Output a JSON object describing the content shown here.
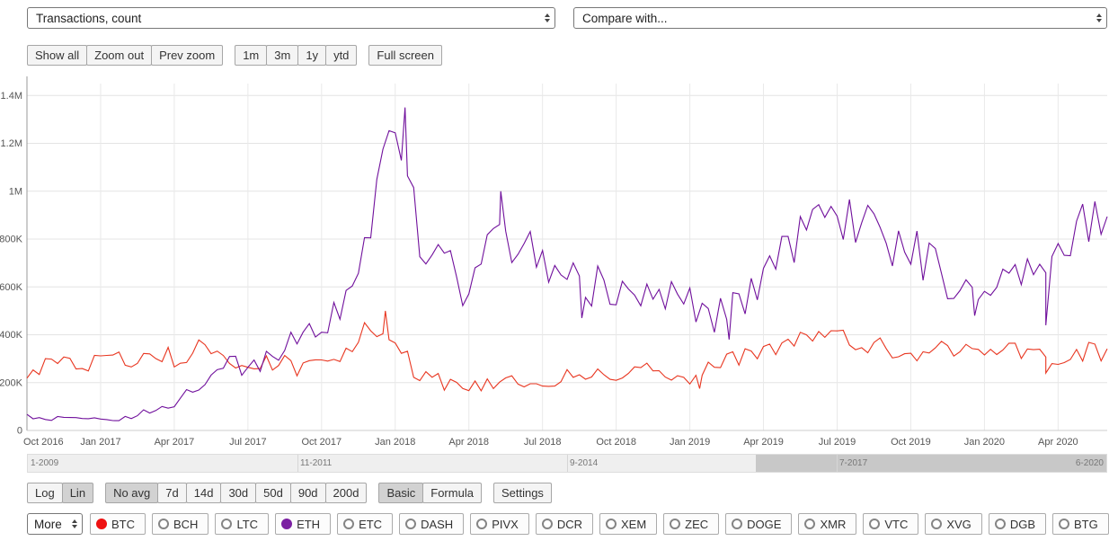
{
  "header": {
    "metric_select": {
      "value": "Transactions, count"
    },
    "compare_select": {
      "value": "Compare with..."
    }
  },
  "toolbar": {
    "zoom_buttons": [
      {
        "label": "Show all",
        "active": false
      },
      {
        "label": "Zoom out",
        "active": false
      },
      {
        "label": "Prev zoom",
        "active": false
      }
    ],
    "range_buttons": [
      {
        "label": "1m",
        "active": false
      },
      {
        "label": "3m",
        "active": false
      },
      {
        "label": "1y",
        "active": false
      },
      {
        "label": "ytd",
        "active": false
      }
    ],
    "fullscreen_buttons": [
      {
        "label": "Full screen",
        "active": false
      }
    ]
  },
  "chart_data": {
    "type": "line",
    "title": "Transactions, count",
    "grid": true,
    "x_axis": {
      "start": "Oct 2016",
      "end": "Jun 2020",
      "total_months": 44,
      "tick_month_indices": [
        0,
        3,
        6,
        9,
        12,
        15,
        18,
        21,
        24,
        27,
        30,
        33,
        36,
        39,
        42
      ],
      "tick_labels": [
        "Oct 2016",
        "Jan 2017",
        "Apr 2017",
        "Jul 2017",
        "Oct 2017",
        "Jan 2018",
        "Apr 2018",
        "Jul 2018",
        "Oct 2018",
        "Jan 2019",
        "Apr 2019",
        "Jul 2019",
        "Oct 2019",
        "Jan 2020",
        "Apr 2020"
      ]
    },
    "y_axis": {
      "max": 1450000,
      "ticks": [
        {
          "value": 0,
          "label": "0"
        },
        {
          "value": 200000,
          "label": "200K"
        },
        {
          "value": 400000,
          "label": "400K"
        },
        {
          "value": 600000,
          "label": "600K"
        },
        {
          "value": 800000,
          "label": "800K"
        },
        {
          "value": 1000000,
          "label": "1M"
        },
        {
          "value": 1200000,
          "label": "1.2M"
        },
        {
          "value": 1400000,
          "label": "1.4M"
        }
      ]
    },
    "series": [
      {
        "name": "BTC",
        "color": "#e8351f",
        "interval": "monthly",
        "monthly_values": [
          245000,
          265000,
          280000,
          285000,
          295000,
          320000,
          305000,
          335000,
          325000,
          270000,
          285000,
          270000,
          295000,
          335000,
          440000,
          370000,
          225000,
          200000,
          185000,
          205000,
          195000,
          205000,
          220000,
          225000,
          235000,
          250000,
          245000,
          230000,
          265000,
          295000,
          335000,
          375000,
          390000,
          405000,
          355000,
          340000,
          330000,
          330000,
          320000,
          310000,
          330000,
          315000,
          290000,
          330000,
          305000
        ],
        "spikes": [
          [
            14.6,
            500000
          ],
          [
            27.4,
            175000
          ],
          [
            41.5,
            240000
          ]
        ],
        "noise": {
          "base": 10000,
          "scale": 0.12,
          "max": 45000,
          "seed": 7
        }
      },
      {
        "name": "ETH",
        "color": "#70109c",
        "interval": "monthly",
        "monthly_values": [
          55000,
          50000,
          45000,
          45000,
          55000,
          80000,
          110000,
          190000,
          280000,
          260000,
          320000,
          380000,
          450000,
          560000,
          900000,
          1250000,
          820000,
          700000,
          580000,
          760000,
          800000,
          750000,
          640000,
          610000,
          560000,
          570000,
          580000,
          550000,
          470000,
          550000,
          620000,
          730000,
          850000,
          900000,
          850000,
          800000,
          760000,
          700000,
          600000,
          540000,
          650000,
          620000,
          750000,
          860000,
          940000
        ],
        "spikes": [
          [
            15.4,
            1350000
          ],
          [
            19.3,
            1000000
          ],
          [
            22.6,
            470000
          ],
          [
            28.6,
            380000
          ],
          [
            38.6,
            480000
          ],
          [
            41.5,
            440000
          ]
        ],
        "noise": {
          "base": 4000,
          "scale": 0.15,
          "max": 110000,
          "seed": 13
        }
      }
    ]
  },
  "navigator": {
    "labels": [
      {
        "label": "1-2009",
        "pct": 0
      },
      {
        "label": "11-2011",
        "pct": 25
      },
      {
        "label": "9-2014",
        "pct": 50
      },
      {
        "label": "7-2017",
        "pct": 75
      },
      {
        "label": "6-2020",
        "pct": 100
      }
    ],
    "tick_positions_pct": [
      25,
      50,
      75
    ],
    "selection": {
      "start_pct": 67.5,
      "end_pct": 100
    }
  },
  "bottom_toolbar": {
    "scale_buttons": [
      {
        "label": "Log",
        "active": false
      },
      {
        "label": "Lin",
        "active": true
      }
    ],
    "avg_buttons": [
      {
        "label": "No avg",
        "active": true
      },
      {
        "label": "7d",
        "active": false
      },
      {
        "label": "14d",
        "active": false
      },
      {
        "label": "30d",
        "active": false
      },
      {
        "label": "50d",
        "active": false
      },
      {
        "label": "90d",
        "active": false
      },
      {
        "label": "200d",
        "active": false
      }
    ],
    "mode_buttons": [
      {
        "label": "Basic",
        "active": true
      },
      {
        "label": "Formula",
        "active": false
      }
    ],
    "settings_buttons": [
      {
        "label": "Settings",
        "active": false
      }
    ]
  },
  "coins": {
    "more_label": "More",
    "items": [
      {
        "symbol": "BTC",
        "checked": true,
        "color": "#ee1111"
      },
      {
        "symbol": "BCH",
        "checked": false
      },
      {
        "symbol": "LTC",
        "checked": false
      },
      {
        "symbol": "ETH",
        "checked": true,
        "color": "#7b1fa2"
      },
      {
        "symbol": "ETC",
        "checked": false
      },
      {
        "symbol": "DASH",
        "checked": false
      },
      {
        "symbol": "PIVX",
        "checked": false
      },
      {
        "symbol": "DCR",
        "checked": false
      },
      {
        "symbol": "XEM",
        "checked": false
      },
      {
        "symbol": "ZEC",
        "checked": false
      },
      {
        "symbol": "DOGE",
        "checked": false
      },
      {
        "symbol": "XMR",
        "checked": false
      },
      {
        "symbol": "VTC",
        "checked": false
      },
      {
        "symbol": "XVG",
        "checked": false
      },
      {
        "symbol": "DGB",
        "checked": false
      },
      {
        "symbol": "BTG",
        "checked": false
      }
    ]
  }
}
